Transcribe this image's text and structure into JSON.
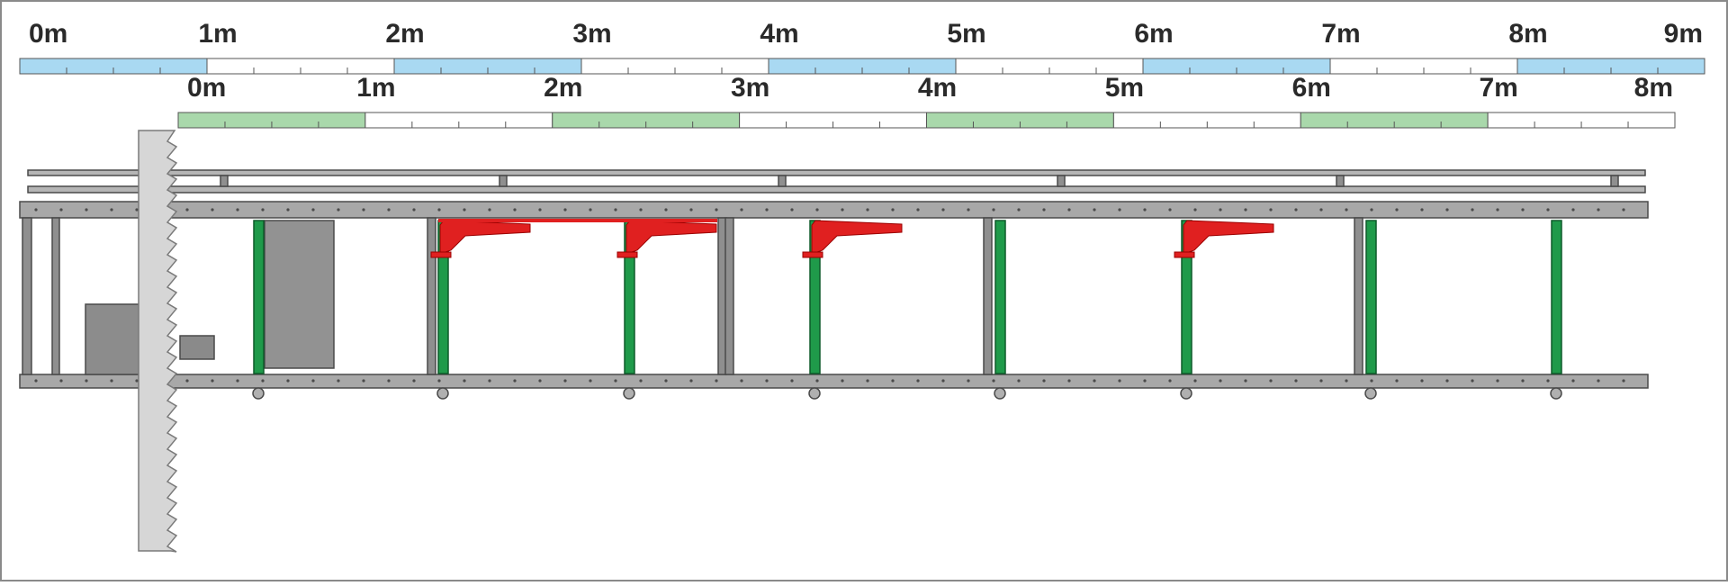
{
  "rulers": [
    {
      "labels": [
        "0m",
        "1m",
        "2m",
        "3m",
        "4m",
        "5m",
        "6m",
        "7m",
        "8m",
        "9m"
      ]
    },
    {
      "labels": [
        "0m",
        "1m",
        "2m",
        "3m",
        "4m",
        "5m",
        "6m",
        "7m",
        "8m"
      ]
    }
  ]
}
